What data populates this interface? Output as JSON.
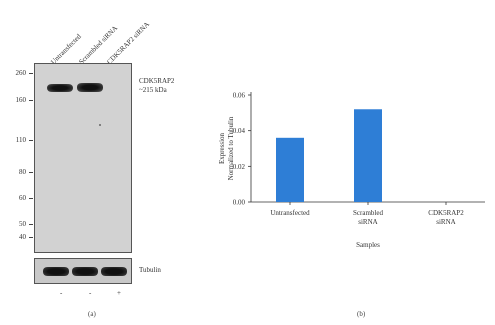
{
  "panel_a": {
    "label": "(a)",
    "lanes": [
      "Untransfected",
      "Scrambled siRNA",
      "CDK5RAP2 siRNA"
    ],
    "mw_markers": [
      "260",
      "160",
      "110",
      "80",
      "60",
      "50",
      "40"
    ],
    "band_label_line1": "CDK5RAP2",
    "band_label_line2": "~215 kDa",
    "loading_label": "Tubulin",
    "treatment_signs": [
      "-",
      "-",
      "+"
    ]
  },
  "panel_b": {
    "label": "(b)"
  },
  "chart_data": {
    "type": "bar",
    "categories": [
      "Untransfected",
      "Scrambled siRNA",
      "CDK5RAP2 siRNA"
    ],
    "category_lines": [
      [
        "Untransfected"
      ],
      [
        "Scrambled",
        "siRNA"
      ],
      [
        "CDK5RAP2",
        "siRNA"
      ]
    ],
    "values": [
      0.036,
      0.052,
      0.0
    ],
    "ylabel_line1": "Expression",
    "ylabel_line2": "Normalized to Tubulin",
    "xlabel": "Samples",
    "ylim": [
      0,
      0.06
    ],
    "yticks": [
      "0.00",
      "0.02",
      "0.04",
      "0.06"
    ],
    "bar_color": "#2e7ed6",
    "grid": false
  }
}
